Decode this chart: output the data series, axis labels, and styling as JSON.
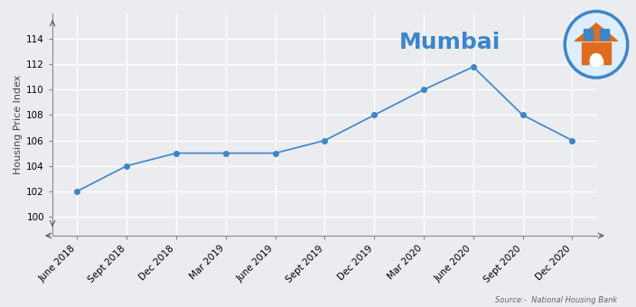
{
  "title": "Mumbai",
  "ylabel": "Housing Price Index",
  "x_labels": [
    "June 2018",
    "Sept 2018",
    "Dec 2018",
    "Mar 2019",
    "June 2019",
    "Sept 2019",
    "Dec 2019",
    "Mar 2020",
    "June 2020",
    "Sept 2020",
    "Dec 2020"
  ],
  "y_values": [
    102,
    104,
    105,
    105,
    105,
    106,
    108,
    110,
    111.8,
    108,
    106
  ],
  "line_color": "#3d85c8",
  "marker_color": "#3d85c8",
  "background_color": "#eaecf0",
  "grid_color": "#ffffff",
  "ylim": [
    98.5,
    116
  ],
  "yticks": [
    100,
    102,
    104,
    106,
    108,
    110,
    112,
    114
  ],
  "source_text": "Source:-  National Housing Bank",
  "title_fontsize": 18,
  "title_color": "#3d85c8",
  "ylabel_fontsize": 8,
  "tick_fontsize": 7.5,
  "source_fontsize": 6
}
